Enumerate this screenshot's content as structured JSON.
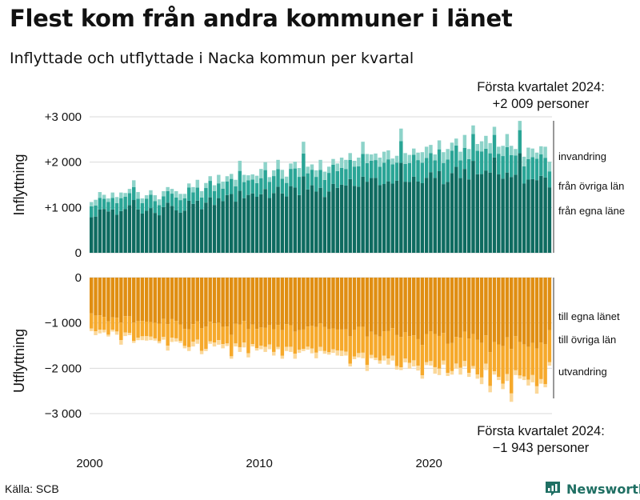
{
  "title": "Flest kom från andra kommuner i länet",
  "subtitle": "Inflyttade och utflyttade i Nacka kommun per kvartal",
  "source": "Källa: SCB",
  "brand": "Newsworthy",
  "chart_data": {
    "type": "bar",
    "stacked": true,
    "x_axis": {
      "tick_labels": [
        "2000",
        "2010",
        "2020"
      ],
      "start_year": 2000,
      "end": "2024 Q1"
    },
    "panels": [
      {
        "name": "inflyttning",
        "ylabel": "Inflyttning",
        "ylim": [
          0,
          3000
        ],
        "y_ticks": [
          0,
          1000,
          2000,
          3000
        ],
        "y_tick_labels": [
          "0",
          "+1 000",
          "+2 000",
          "+3 000"
        ],
        "series": [
          {
            "name": "från egna läne",
            "color": "#0e6b60"
          },
          {
            "name": "från övriga län",
            "color": "#2aa596"
          },
          {
            "name": "invandring",
            "color": "#8dd3c9"
          }
        ],
        "annotation": [
          "Första kvartalet 2024:",
          "+2 009 personer"
        ]
      },
      {
        "name": "utflyttning",
        "ylabel": "Utflyttning",
        "ylim": [
          -3000,
          0
        ],
        "y_ticks": [
          0,
          -1000,
          -2000,
          -3000
        ],
        "y_tick_labels": [
          "0",
          "−1 000",
          "−2 000",
          "−3 000"
        ],
        "series": [
          {
            "name": "till egna länet",
            "color": "#e08e12"
          },
          {
            "name": "till övriga län",
            "color": "#f6a92b"
          },
          {
            "name": "utvandring",
            "color": "#fbd89a"
          }
        ],
        "annotation": [
          "Första kvartalet 2024:",
          "−1 943 personer"
        ]
      }
    ],
    "quarterly_totals": {
      "inflyttning": [
        1120,
        1170,
        1340,
        1280,
        1200,
        1330,
        1230,
        1330,
        1320,
        1410,
        1600,
        1340,
        1200,
        1270,
        1380,
        1270,
        1180,
        1360,
        1450,
        1410,
        1360,
        1300,
        1300,
        1530,
        1450,
        1610,
        1360,
        1540,
        1690,
        1490,
        1720,
        1570,
        1690,
        1740,
        1610,
        2030,
        1720,
        1710,
        1730,
        1700,
        1850,
        2000,
        1670,
        1820,
        2050,
        1830,
        1680,
        1970,
        2010,
        1870,
        2450,
        1900,
        1950,
        1820,
        2050,
        1790,
        1900,
        2070,
        1970,
        2100,
        2050,
        2200,
        2030,
        2100,
        2450,
        2180,
        2170,
        2190,
        2100,
        2230,
        2260,
        2080,
        2140,
        2740,
        2200,
        2160,
        2300,
        2210,
        2220,
        2340,
        2380,
        2170,
        2480,
        2220,
        2290,
        2430,
        2520,
        2230,
        2600,
        2290,
        2810,
        2400,
        2460,
        2580,
        2420,
        2780,
        2340,
        2360,
        2620,
        2360,
        2290,
        2910,
        2120,
        2320,
        2300,
        2210,
        2350,
        2340,
        2009
      ],
      "utflyttning": [
        -1180,
        -1270,
        -1230,
        -1210,
        -1300,
        -1190,
        -1260,
        -1480,
        -1290,
        -1270,
        -1440,
        -1380,
        -1380,
        -1390,
        -1380,
        -1390,
        -1450,
        -1370,
        -1610,
        -1420,
        -1410,
        -1440,
        -1560,
        -1620,
        -1520,
        -1460,
        -1690,
        -1620,
        -1460,
        -1520,
        -1480,
        -1560,
        -1510,
        -1790,
        -1520,
        -1640,
        -1540,
        -1760,
        -1520,
        -1610,
        -1580,
        -1640,
        -1580,
        -1720,
        -1580,
        -1790,
        -1620,
        -1640,
        -1790,
        -1660,
        -1620,
        -1590,
        -1670,
        -1780,
        -1620,
        -1680,
        -1700,
        -1660,
        -1720,
        -1730,
        -1720,
        -1960,
        -1800,
        -1760,
        -1780,
        -2060,
        -1780,
        -1820,
        -1900,
        -1830,
        -1920,
        -1830,
        -2030,
        -2040,
        -1870,
        -2010,
        -1960,
        -2050,
        -2230,
        -1930,
        -1940,
        -2120,
        -2150,
        -1920,
        -2170,
        -2140,
        -2010,
        -2140,
        -1960,
        -2190,
        -2010,
        -2230,
        -2350,
        -2040,
        -2530,
        -2140,
        -2260,
        -2460,
        -2280,
        -2740,
        -2150,
        -2230,
        -2260,
        -2380,
        -2310,
        -2560,
        -2340,
        -2420,
        -1943
      ]
    },
    "series_labels_right": {
      "inflyttning": [
        "invandring",
        "från övriga län",
        "från egna läne"
      ],
      "utflyttning": [
        "till egna länet",
        "till övriga län",
        "utvandring"
      ]
    }
  }
}
